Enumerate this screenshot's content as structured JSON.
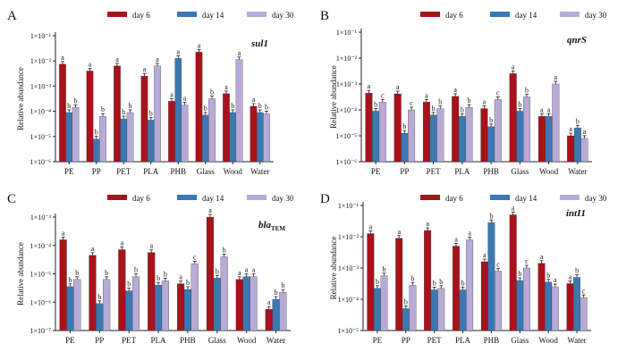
{
  "legend": {
    "day6": "day 6",
    "day14": "day 14",
    "day30": "day 30"
  },
  "colors": {
    "day6": "#a8121b",
    "day14": "#3c78b1",
    "day30": "#b8aad6",
    "axis": "#222222"
  },
  "chart_data": [
    {
      "type": "bar",
      "panel": "A",
      "gene": "sul1",
      "gene_label": "sul",
      "gene_suffix": "1",
      "suffix_mode": "normal",
      "ylabel": "Relative abundance",
      "log_scale": true,
      "ylim_exp": [
        -6,
        -1
      ],
      "yticks": [
        "1×10⁻⁶",
        "1×10⁻⁵",
        "1×10⁻⁴",
        "1×10⁻³",
        "1×10⁻²",
        "1×10⁻¹"
      ],
      "categories": [
        "PE",
        "PP",
        "PET",
        "PLA",
        "PHB",
        "Glass",
        "Wood",
        "Water"
      ],
      "series": [
        {
          "name": "day 6",
          "exp": [
            -2.13,
            -2.4,
            -2.2,
            -2.6,
            -3.6,
            -1.65,
            -3.3,
            -3.8
          ],
          "letters": [
            "a",
            "a",
            "a",
            "a",
            "a",
            "a",
            "a",
            "a"
          ]
        },
        {
          "name": "day 14",
          "exp": [
            -4.05,
            -5.1,
            -4.3,
            -4.35,
            -1.9,
            -4.15,
            -4.05,
            -4.05
          ],
          "letters": [
            "b",
            "b",
            "b",
            "b",
            "a",
            "b",
            "b",
            "b"
          ]
        },
        {
          "name": "day 30",
          "exp": [
            -3.85,
            -4.2,
            -4.05,
            -2.2,
            -3.75,
            -3.5,
            -1.95,
            -4.1
          ],
          "letters": [
            "b",
            "b",
            "b",
            "a",
            "a",
            "b",
            "a",
            "b"
          ]
        }
      ]
    },
    {
      "type": "bar",
      "panel": "B",
      "gene": "qnrS",
      "gene_label": "qnr",
      "gene_suffix": "S",
      "suffix_mode": "normal",
      "ylabel": "Relative abundance",
      "log_scale": true,
      "ylim_exp": [
        -6,
        -1
      ],
      "yticks": [
        "1×10⁻⁶",
        "1×10⁻⁵",
        "1×10⁻⁴",
        "1×10⁻³",
        "1×10⁻²",
        "1×10⁻¹"
      ],
      "categories": [
        "PE",
        "PP",
        "PET",
        "PLA",
        "PHB",
        "Glass",
        "Wood",
        "Water"
      ],
      "series": [
        {
          "name": "day 6",
          "exp": [
            -3.35,
            -3.38,
            -3.7,
            -3.48,
            -3.95,
            -2.6,
            -4.25,
            -5.0
          ],
          "letters": [
            "a",
            "a",
            "a",
            "a",
            "a",
            "a",
            "a",
            "a"
          ]
        },
        {
          "name": "day 14",
          "exp": [
            -4.05,
            -4.9,
            -4.2,
            -4.25,
            -4.65,
            -4.05,
            -4.25,
            -4.7
          ],
          "letters": [
            "b",
            "b",
            "b",
            "b",
            "b",
            "b",
            "a",
            "b"
          ]
        },
        {
          "name": "day 30",
          "exp": [
            -3.7,
            -4.0,
            -3.95,
            -3.9,
            -3.6,
            -3.5,
            -3.0,
            -5.1
          ],
          "letters": [
            "c",
            "c",
            "b",
            "b",
            "c",
            "b",
            "a",
            "a"
          ]
        }
      ]
    },
    {
      "type": "bar",
      "panel": "C",
      "gene": "blaTEM",
      "gene_label": "bla",
      "gene_suffix": "TEM",
      "suffix_mode": "sub",
      "ylabel": "Relative abundance",
      "log_scale": true,
      "ylim_exp": [
        -7,
        -3
      ],
      "yticks": [
        "1×10⁻⁷",
        "1×10⁻⁶",
        "1×10⁻⁵",
        "1×10⁻⁴",
        "1×10⁻³"
      ],
      "categories": [
        "PE",
        "PP",
        "PET",
        "PLA",
        "PHB",
        "Glass",
        "Wood",
        "Water"
      ],
      "series": [
        {
          "name": "day 6",
          "exp": [
            -3.8,
            -4.35,
            -4.15,
            -4.25,
            -5.35,
            -3.0,
            -5.2,
            -6.25
          ],
          "letters": [
            "a",
            "a",
            "a",
            "a",
            "a",
            "a",
            "a",
            "a"
          ]
        },
        {
          "name": "day 14",
          "exp": [
            -5.45,
            -6.05,
            -5.6,
            -5.4,
            -5.55,
            -5.15,
            -5.1,
            -5.9
          ],
          "letters": [
            "b",
            "b",
            "b",
            "b",
            "b",
            "b",
            "a",
            "b"
          ]
        },
        {
          "name": "day 30",
          "exp": [
            -5.2,
            -5.2,
            -5.1,
            -5.25,
            -4.65,
            -4.4,
            -5.1,
            -5.65
          ],
          "letters": [
            "b",
            "b",
            "b",
            "b",
            "c",
            "b",
            "a",
            "b"
          ]
        }
      ]
    },
    {
      "type": "bar",
      "panel": "D",
      "gene": "intI1",
      "gene_label": "intI",
      "gene_suffix": "1",
      "suffix_mode": "normal",
      "ylabel": "Relative abundance",
      "log_scale": true,
      "ylim_exp": [
        -5,
        -1
      ],
      "yticks": [
        "1×10⁻⁵",
        "1×10⁻⁴",
        "1×10⁻³",
        "1×10⁻²",
        "1×10⁻¹"
      ],
      "categories": [
        "PE",
        "PP",
        "PET",
        "PLA",
        "PHB",
        "Glass",
        "Wood",
        "Water"
      ],
      "series": [
        {
          "name": "day 6",
          "exp": [
            -1.9,
            -2.05,
            -1.8,
            -2.3,
            -2.8,
            -1.3,
            -2.85,
            -3.5
          ],
          "letters": [
            "a",
            "a",
            "a",
            "a",
            "a",
            "a",
            "a",
            "a"
          ]
        },
        {
          "name": "day 14",
          "exp": [
            -3.65,
            -4.3,
            -3.7,
            -3.7,
            -1.55,
            -3.4,
            -3.45,
            -3.3
          ],
          "letters": [
            "b",
            "b",
            "b",
            "b",
            "b",
            "b",
            "b",
            "b"
          ]
        },
        {
          "name": "day 30",
          "exp": [
            -3.25,
            -3.55,
            -3.65,
            -2.1,
            -3.1,
            -3.0,
            -3.6,
            -3.95
          ],
          "letters": [
            "b",
            "b",
            "b",
            "a",
            "c",
            "c",
            "a",
            "c"
          ]
        }
      ]
    }
  ]
}
